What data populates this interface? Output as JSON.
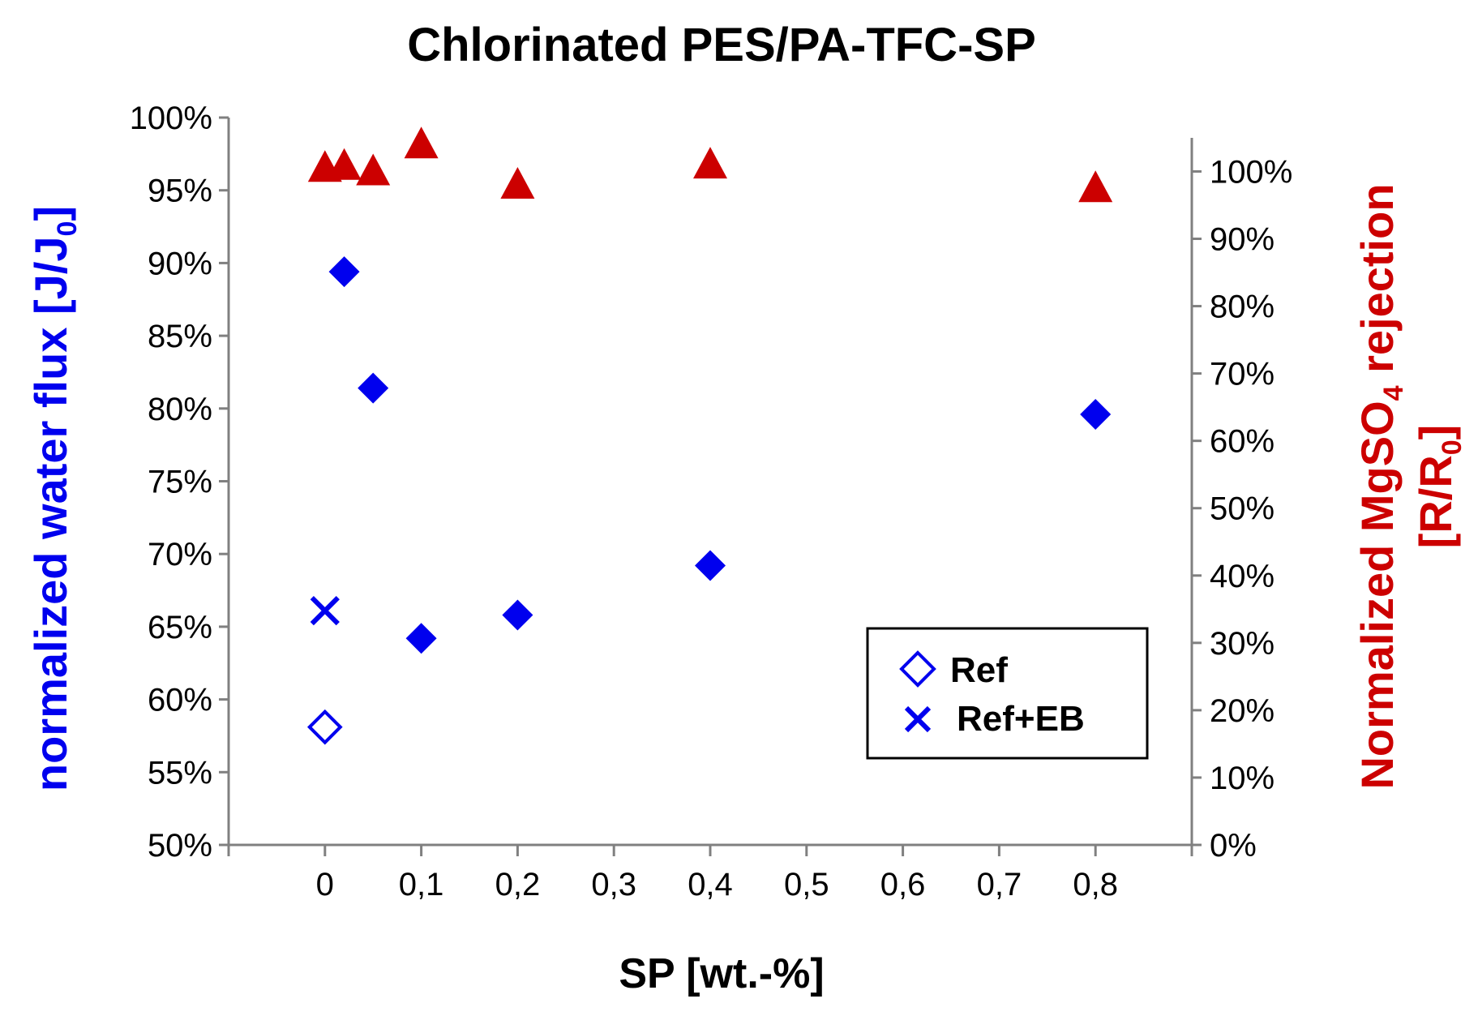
{
  "chart_data": {
    "type": "scatter",
    "title": "Chlorinated PES/PA-TFC-SP",
    "xlabel": "SP [wt.-%]",
    "ylabel_left": {
      "main": "normalized water flux [J/J",
      "sub": "0",
      "end": "]"
    },
    "ylabel_right": {
      "line1_main": "Normalized MgSO",
      "line1_sub": "4",
      "line1_end": " rejection",
      "line2_main": "[R/R",
      "line2_sub": "0",
      "line2_end": "]"
    },
    "xlim": [
      -0.1,
      0.9
    ],
    "ylim_left": [
      0.5,
      1.0
    ],
    "ylim_right": [
      0.0,
      1.08
    ],
    "x_ticks": [
      0,
      0.1,
      0.2,
      0.3,
      0.4,
      0.5,
      0.6,
      0.7,
      0.8
    ],
    "x_tick_labels": [
      "0",
      "0,1",
      "0,2",
      "0,3",
      "0,4",
      "0,5",
      "0,6",
      "0,7",
      "0,8"
    ],
    "y_left_ticks": [
      0.5,
      0.55,
      0.6,
      0.65,
      0.7,
      0.75,
      0.8,
      0.85,
      0.9,
      0.95,
      1.0
    ],
    "y_left_tick_labels": [
      "50%",
      "55%",
      "60%",
      "65%",
      "70%",
      "75%",
      "80%",
      "85%",
      "90%",
      "95%",
      "100%"
    ],
    "y_right_ticks": [
      0,
      0.1,
      0.2,
      0.3,
      0.4,
      0.5,
      0.6,
      0.7,
      0.8,
      0.9,
      1.0
    ],
    "y_right_tick_labels": [
      "0%",
      "10%",
      "20%",
      "30%",
      "40%",
      "50%",
      "60%",
      "70%",
      "80%",
      "90%",
      "100%"
    ],
    "grid": false,
    "legend_position": "bottom-right",
    "colors": {
      "flux": "#0000ee",
      "rejection": "#cc0000",
      "axis": "#808080"
    },
    "series": [
      {
        "name": "Ref",
        "axis": "left",
        "marker": "diamond-open",
        "in_legend": true,
        "points": [
          {
            "x": 0,
            "y": 0.581
          }
        ]
      },
      {
        "name": "Ref+EB",
        "axis": "left",
        "marker": "x",
        "in_legend": true,
        "points": [
          {
            "x": 0,
            "y": 0.661
          }
        ]
      },
      {
        "axis": "left",
        "marker": "diamond-filled",
        "in_legend": false,
        "points": [
          {
            "x": 0.02,
            "y": 0.894
          },
          {
            "x": 0.05,
            "y": 0.814
          },
          {
            "x": 0.1,
            "y": 0.642
          },
          {
            "x": 0.2,
            "y": 0.658
          },
          {
            "x": 0.4,
            "y": 0.692
          },
          {
            "x": 0.8,
            "y": 0.796
          }
        ]
      },
      {
        "axis": "right",
        "marker": "triangle-filled",
        "in_legend": false,
        "points": [
          {
            "x": 0,
            "y": 1.005
          },
          {
            "x": 0.02,
            "y": 1.008
          },
          {
            "x": 0.05,
            "y": 1.0
          },
          {
            "x": 0.1,
            "y": 1.04
          },
          {
            "x": 0.2,
            "y": 0.98
          },
          {
            "x": 0.4,
            "y": 1.01
          },
          {
            "x": 0.8,
            "y": 0.975
          }
        ]
      }
    ]
  }
}
